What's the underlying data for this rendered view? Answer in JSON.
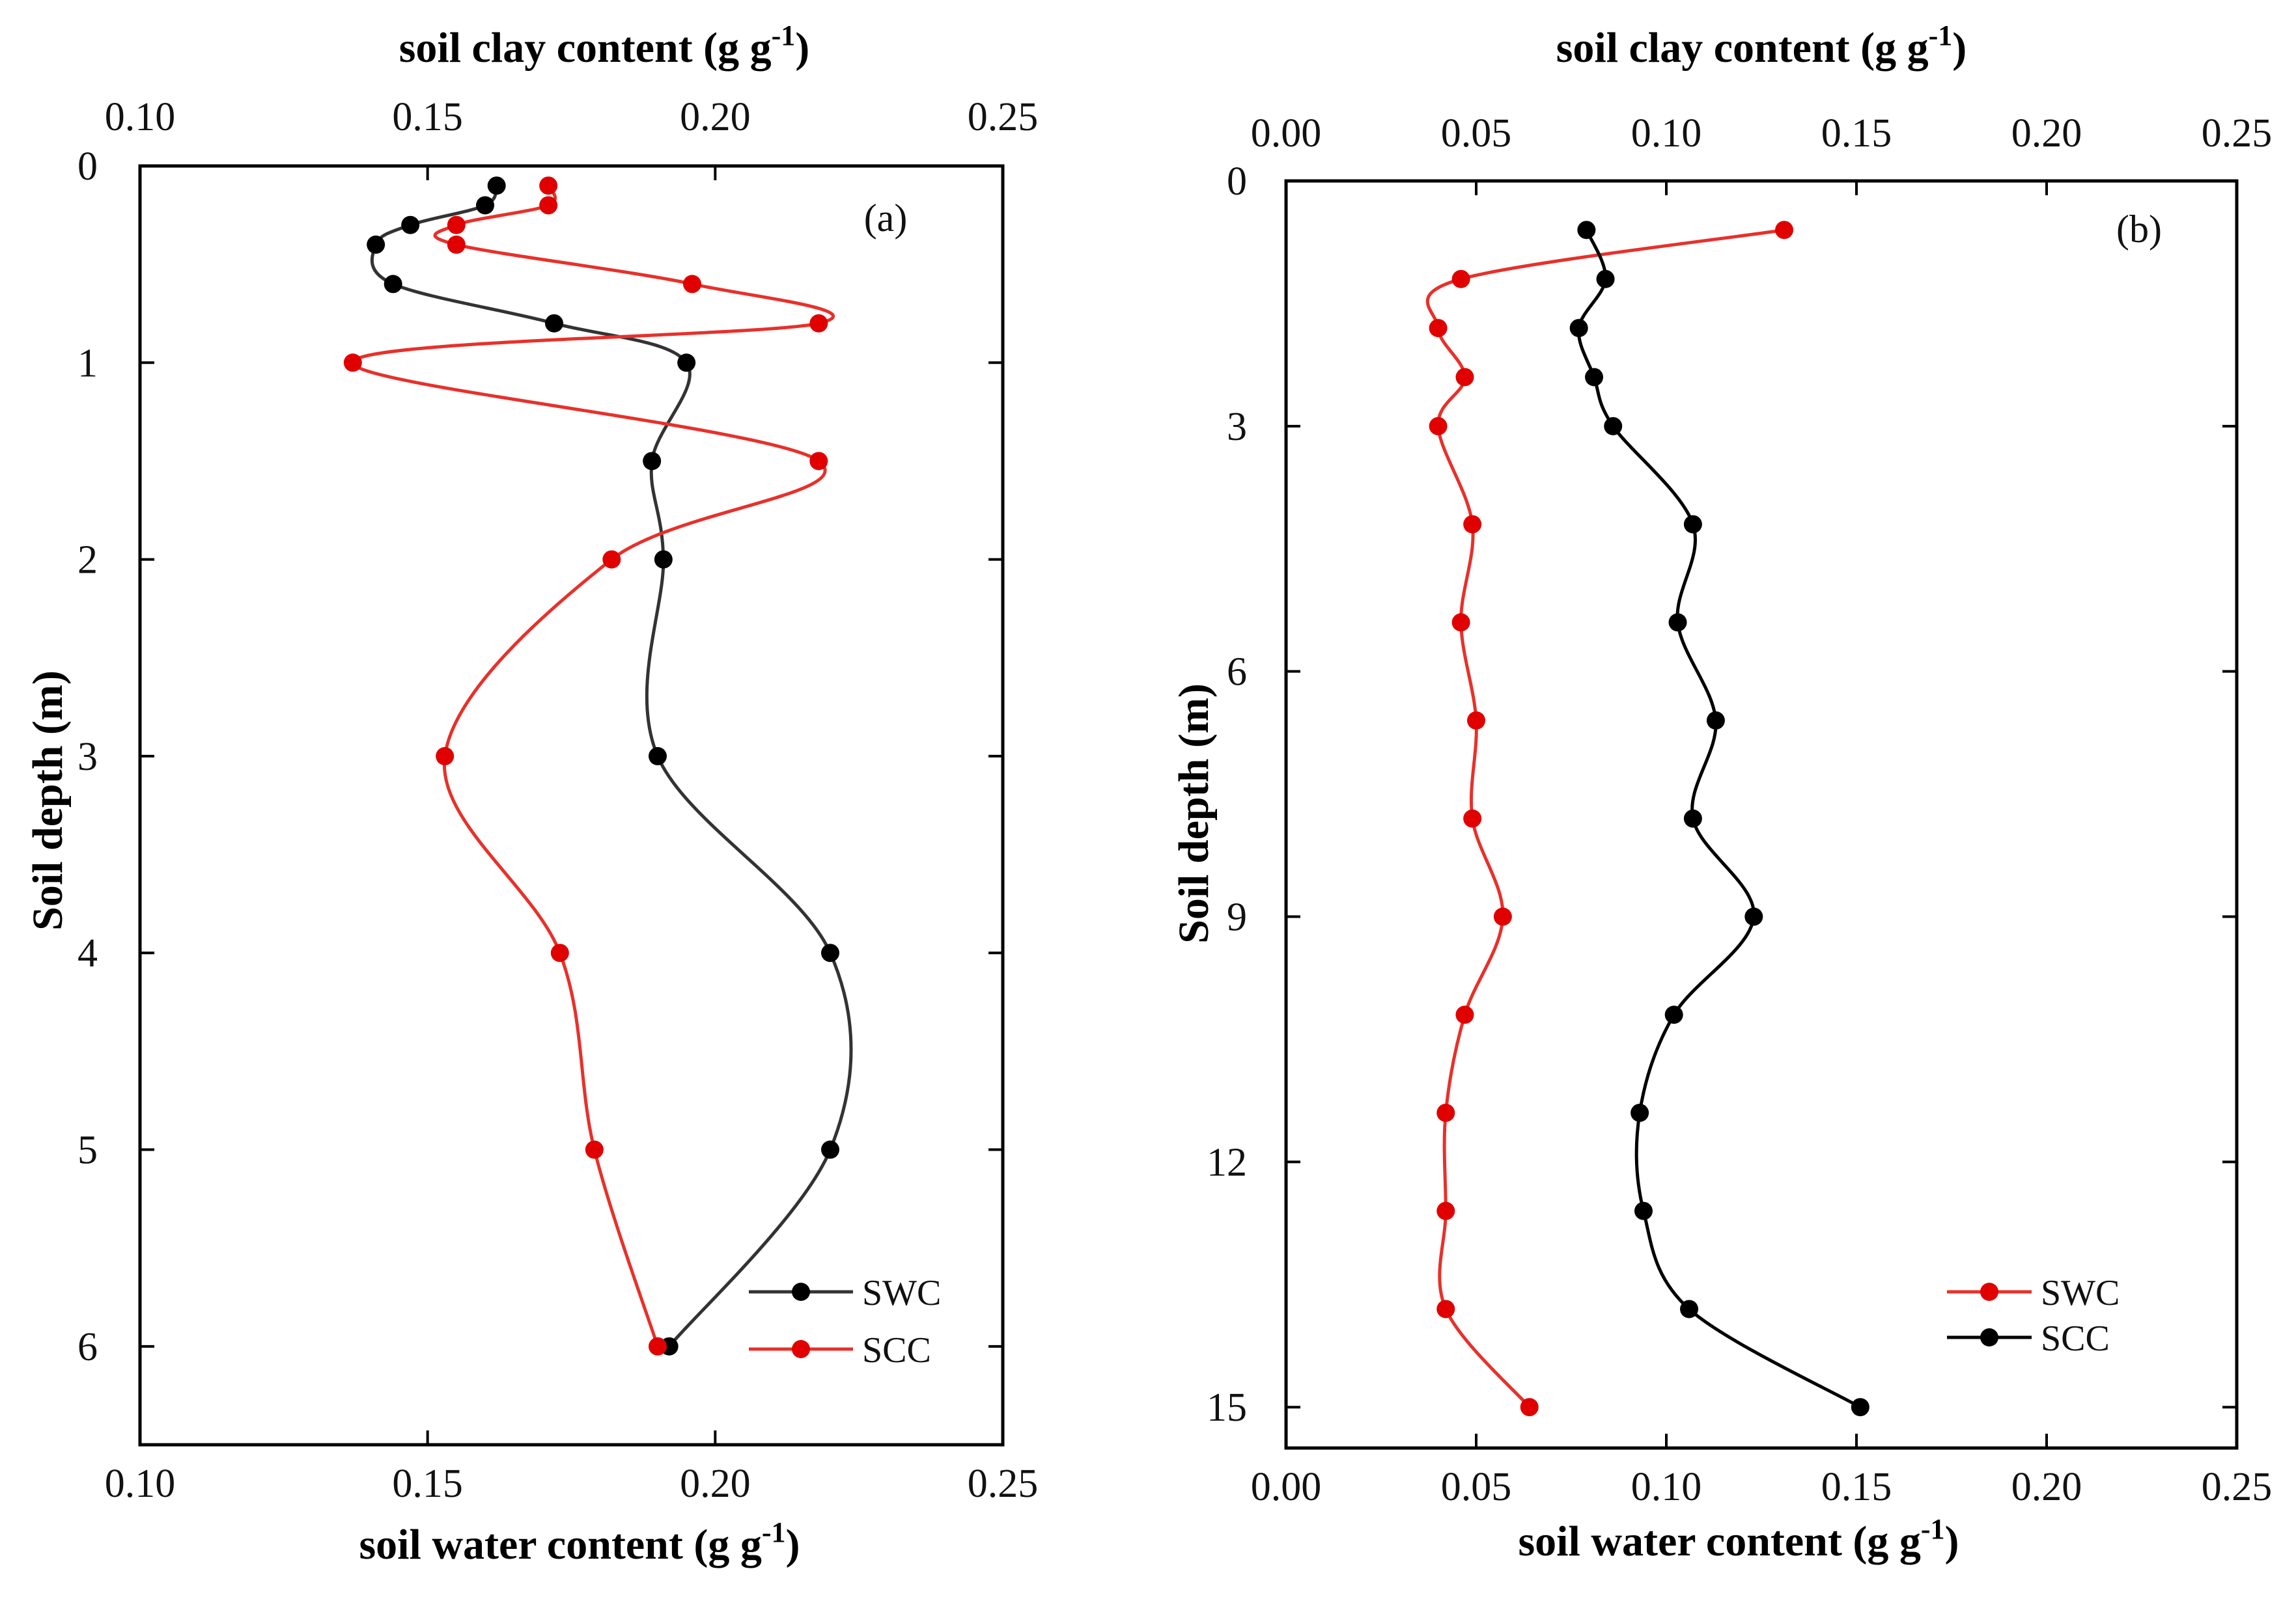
{
  "chart_data": [
    {
      "type": "line",
      "panel_label": "(a)",
      "top_axis": {
        "label": "soil clay content (g g",
        "sup": "-1",
        "close": ")",
        "range": [
          0.1,
          0.25
        ],
        "ticks": [
          "0.10",
          "0.15",
          "0.20",
          "0.25"
        ]
      },
      "bottom_axis": {
        "label": "soil water content (g g",
        "sup": "-1",
        "close": ")",
        "range": [
          0.1,
          0.25
        ],
        "ticks": [
          "0.10",
          "0.15",
          "0.20",
          "0.25"
        ]
      },
      "y_axis": {
        "label": "Soil depth (m)",
        "range": [
          0,
          6.5
        ],
        "ticks": [
          "0",
          "1",
          "2",
          "3",
          "4",
          "5",
          "6"
        ],
        "tick_values": [
          0,
          1,
          2,
          3,
          4,
          5,
          6
        ]
      },
      "legend_position": "bottom-right",
      "series": [
        {
          "name": "SWC",
          "color": "#333333",
          "marker_color": "#000000",
          "points": [
            [
              0.162,
              0.1
            ],
            [
              0.16,
              0.2
            ],
            [
              0.147,
              0.3
            ],
            [
              0.141,
              0.4
            ],
            [
              0.144,
              0.6
            ],
            [
              0.172,
              0.8
            ],
            [
              0.195,
              1.0
            ],
            [
              0.189,
              1.5
            ],
            [
              0.191,
              2.0
            ],
            [
              0.19,
              3.0
            ],
            [
              0.22,
              4.0
            ],
            [
              0.22,
              5.0
            ],
            [
              0.192,
              6.0
            ]
          ]
        },
        {
          "name": "SCC",
          "color": "#e8302a",
          "marker_color": "#e00000",
          "points": [
            [
              0.171,
              0.1
            ],
            [
              0.171,
              0.2
            ],
            [
              0.155,
              0.3
            ],
            [
              0.155,
              0.4
            ],
            [
              0.196,
              0.6
            ],
            [
              0.218,
              0.8
            ],
            [
              0.137,
              1.0
            ],
            [
              0.218,
              1.5
            ],
            [
              0.182,
              2.0
            ],
            [
              0.153,
              3.0
            ],
            [
              0.173,
              4.0
            ],
            [
              0.179,
              5.0
            ],
            [
              0.19,
              6.0
            ]
          ]
        }
      ]
    },
    {
      "type": "line",
      "panel_label": "(b)",
      "top_axis": {
        "label": "soil clay content (g g",
        "sup": "-1",
        "close": ")",
        "range": [
          0.0,
          0.25
        ],
        "ticks": [
          "0.00",
          "0.05",
          "0.10",
          "0.15",
          "0.20",
          "0.25"
        ]
      },
      "bottom_axis": {
        "label": "soil water content (g g",
        "sup": "-1",
        "close": ")",
        "range": [
          0.0,
          0.25
        ],
        "ticks": [
          "0.00",
          "0.05",
          "0.10",
          "0.15",
          "0.20",
          "0.25"
        ]
      },
      "y_axis": {
        "label": "Soil depth (m)",
        "range": [
          0,
          15.5
        ],
        "ticks": [
          "0",
          "3",
          "6",
          "9",
          "12",
          "15"
        ],
        "tick_values": [
          0,
          3,
          6,
          9,
          12,
          15
        ]
      },
      "legend_position": "bottom-right",
      "series": [
        {
          "name": "SWC",
          "color": "#e8302a",
          "marker_color": "#e00000",
          "points": [
            [
              0.131,
              0.6
            ],
            [
              0.046,
              1.2
            ],
            [
              0.04,
              1.8
            ],
            [
              0.047,
              2.4
            ],
            [
              0.04,
              3.0
            ],
            [
              0.049,
              4.2
            ],
            [
              0.046,
              5.4
            ],
            [
              0.05,
              6.6
            ],
            [
              0.049,
              7.8
            ],
            [
              0.057,
              9.0
            ],
            [
              0.047,
              10.2
            ],
            [
              0.042,
              11.4
            ],
            [
              0.042,
              12.6
            ],
            [
              0.042,
              13.8
            ],
            [
              0.064,
              15.0
            ]
          ]
        },
        {
          "name": "SCC",
          "color": "#000000",
          "marker_color": "#000000",
          "points": [
            [
              0.079,
              0.6
            ],
            [
              0.084,
              1.2
            ],
            [
              0.077,
              1.8
            ],
            [
              0.081,
              2.4
            ],
            [
              0.086,
              3.0
            ],
            [
              0.107,
              4.2
            ],
            [
              0.103,
              5.4
            ],
            [
              0.113,
              6.6
            ],
            [
              0.107,
              7.8
            ],
            [
              0.123,
              9.0
            ],
            [
              0.102,
              10.2
            ],
            [
              0.093,
              11.4
            ],
            [
              0.094,
              12.6
            ],
            [
              0.106,
              13.8
            ],
            [
              0.151,
              15.0
            ]
          ]
        }
      ]
    }
  ]
}
